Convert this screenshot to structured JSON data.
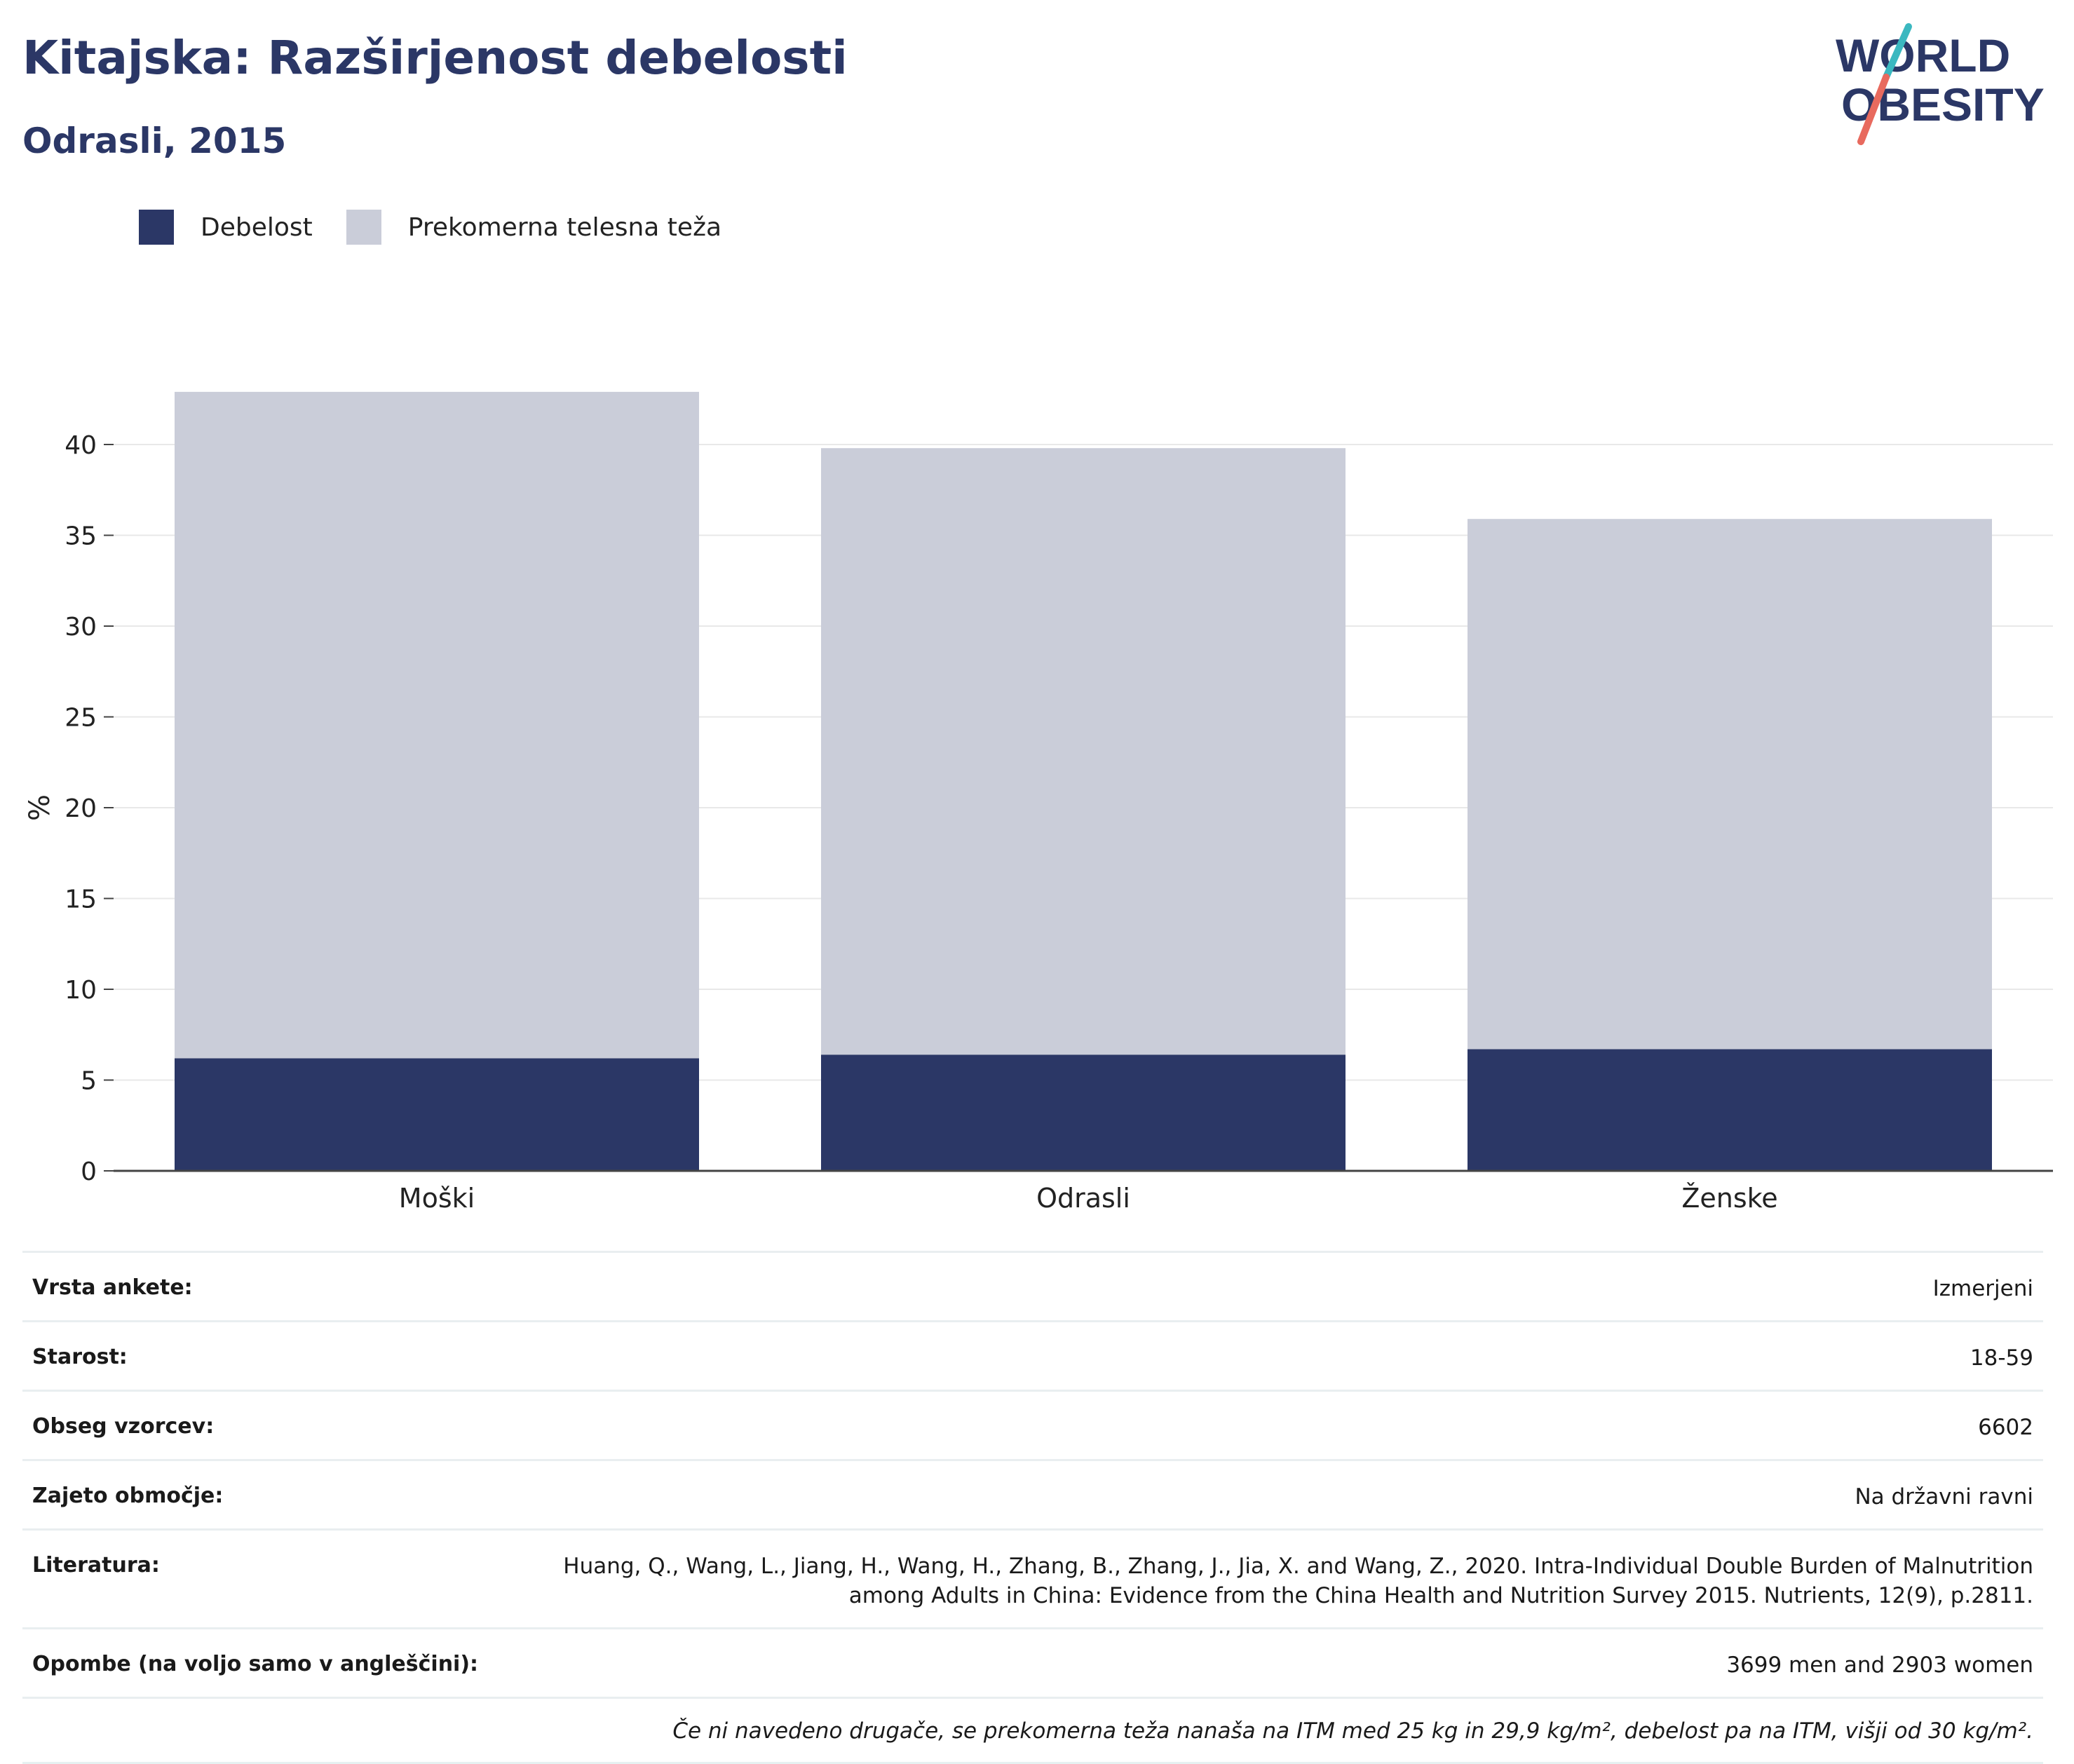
{
  "header": {
    "title": "Kitajska: Razširjenost debelosti",
    "subtitle": "Odrasli, 2015"
  },
  "logo": {
    "line1": "WORLD",
    "line2": "OBESITY",
    "colors": {
      "text": "#2b3766",
      "slash_top": "#3bb8c0",
      "slash_bottom": "#e86a5e"
    }
  },
  "colors": {
    "obesity": "#2b3766",
    "overweight": "#cacdd9",
    "grid": "#e8e8e8",
    "axis": "#444444"
  },
  "chart_data": {
    "type": "bar",
    "stacked": true,
    "title": "Kitajska: Razširjenost debelosti",
    "subtitle": "Odrasli, 2015",
    "ylabel": "%",
    "xlabel": "",
    "categories": [
      "Moški",
      "Odrasli",
      "Ženske"
    ],
    "series": [
      {
        "name": "Debelost",
        "values": [
          6.2,
          6.4,
          6.7
        ]
      },
      {
        "name": "Prekomerna telesna teža",
        "values": [
          36.7,
          33.4,
          29.2
        ]
      }
    ],
    "totals": [
      42.9,
      39.8,
      35.9
    ],
    "ylim": [
      0,
      43
    ],
    "yticks": [
      "0",
      "5",
      "10",
      "15",
      "20",
      "25",
      "30",
      "35",
      "40"
    ],
    "grid": true,
    "legend_position": "top-left"
  },
  "info": {
    "rows": [
      {
        "key": "Vrsta ankete:",
        "value": "Izmerjeni"
      },
      {
        "key": "Starost:",
        "value": "18-59"
      },
      {
        "key": "Obseg vzorcev:",
        "value": "6602"
      },
      {
        "key": "Zajeto območje:",
        "value": "Na državni ravni"
      },
      {
        "key": "Literatura:",
        "value_line1": "Huang, Q., Wang, L., Jiang, H., Wang, H., Zhang, B., Zhang, J., Jia, X. and Wang, Z., 2020. Intra-Individual Double Burden of Malnutrition",
        "value_line2": "among Adults in China: Evidence from the China Health and Nutrition Survey 2015. Nutrients, 12(9), p.2811."
      },
      {
        "key": "Opombe (na voljo samo v angleščini):",
        "value": "3699 men and 2903 women"
      }
    ],
    "note": "Če ni navedeno drugače, se prekomerna teža nanaša na ITM med 25 kg in 29,9 kg/m², debelost pa na ITM, višji od 30 kg/m²."
  }
}
